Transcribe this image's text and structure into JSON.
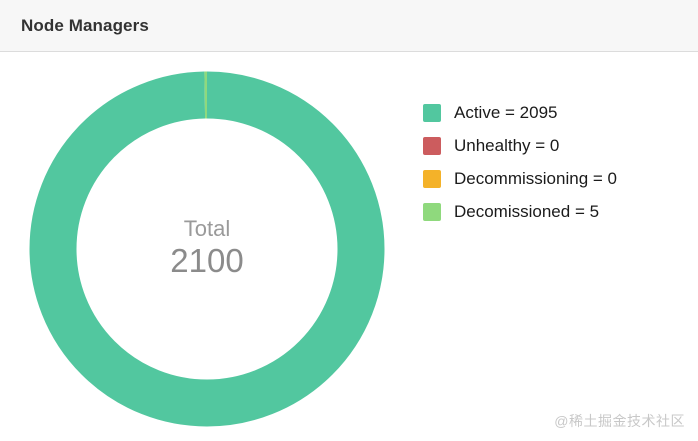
{
  "header": {
    "title": "Node Managers"
  },
  "watermark": "@稀土掘金技术社区",
  "chart_data": {
    "type": "pie",
    "donut": true,
    "title": "Node Managers",
    "categories": [
      "Active",
      "Unhealthy",
      "Decommissioning",
      "Decomissioned"
    ],
    "values": [
      2095,
      0,
      0,
      5
    ],
    "colors": [
      "#52C79F",
      "#CC5C5E",
      "#F4B229",
      "#8FD97D"
    ],
    "total": 2100,
    "center_label": "Total",
    "center_value": "2100",
    "legend_position": "right",
    "legend_labels": [
      "Active = 2095",
      "Unhealthy = 0",
      "Decommissioning = 0",
      "Decomissioned = 5"
    ]
  }
}
